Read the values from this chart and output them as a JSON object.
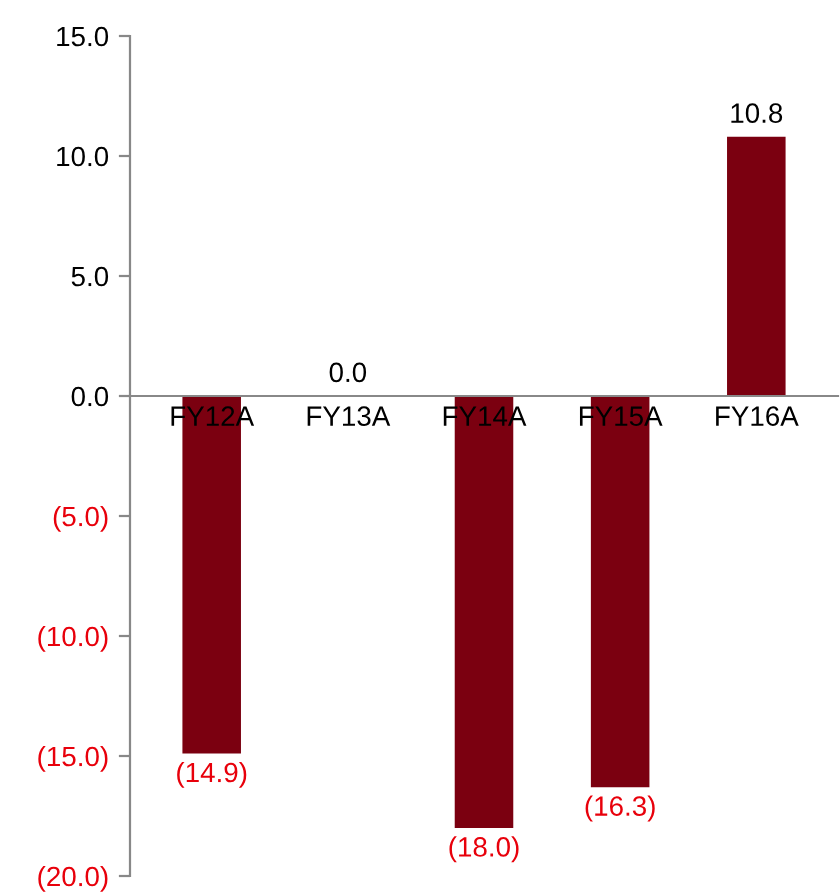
{
  "chart_data": {
    "type": "bar",
    "categories": [
      "FY12A",
      "FY13A",
      "FY14A",
      "FY15A",
      "FY16A"
    ],
    "values": [
      -14.9,
      0.0,
      -18.0,
      -16.3,
      10.8
    ],
    "value_labels": [
      "(14.9)",
      "0.0",
      "(18.0)",
      "(16.3)",
      "10.8"
    ],
    "color": "#7b0010",
    "ylim": [
      -20,
      15
    ],
    "yticks": [
      {
        "value": 15,
        "label": "15.0"
      },
      {
        "value": 10,
        "label": "10.0"
      },
      {
        "value": 5,
        "label": "5.0"
      },
      {
        "value": 0,
        "label": "0.0"
      },
      {
        "value": -5,
        "label": "(5.0)"
      },
      {
        "value": -10,
        "label": "(10.0)"
      },
      {
        "value": -15,
        "label": "(15.0)"
      },
      {
        "value": -20,
        "label": "(20.0)"
      }
    ],
    "grid": false,
    "legend": false
  }
}
